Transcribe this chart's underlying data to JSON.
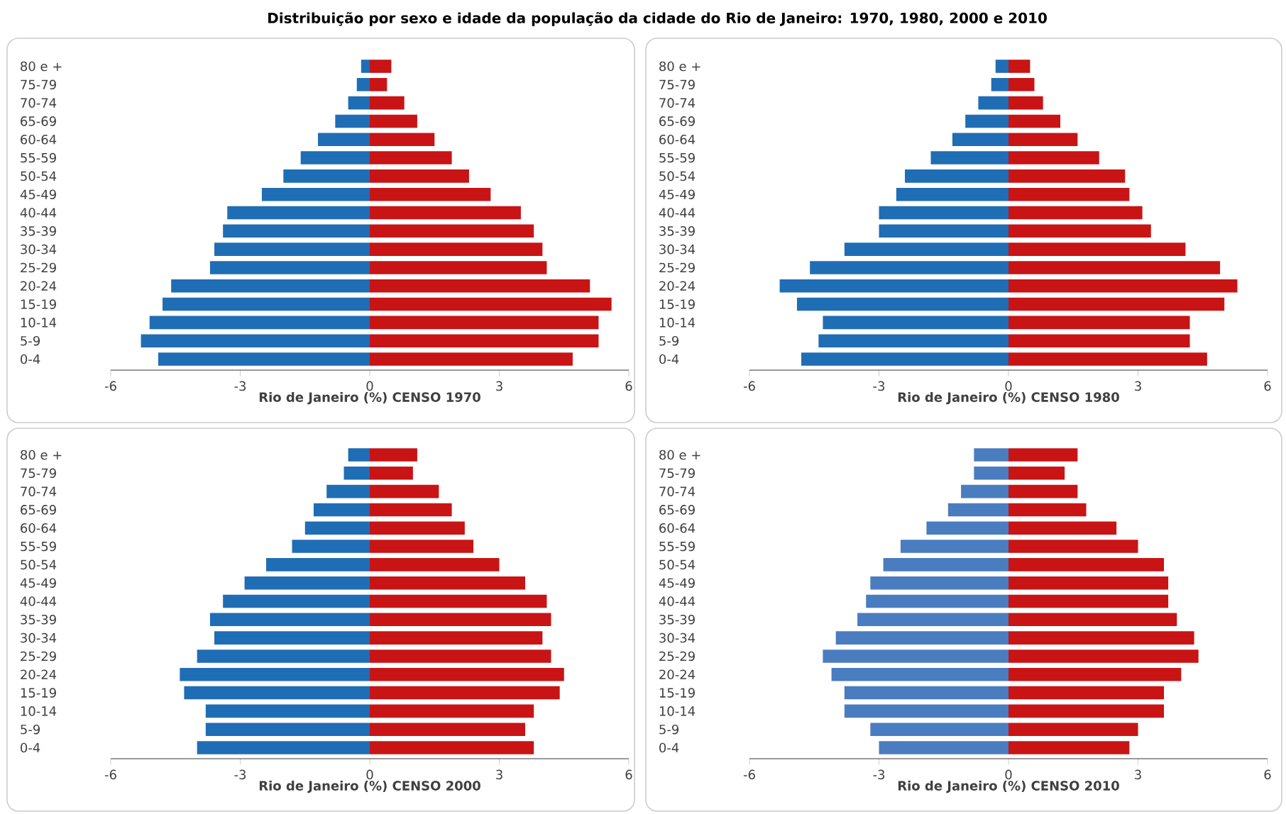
{
  "chart_data": [
    {
      "type": "bar",
      "orientation": "horizontal",
      "stacked": true,
      "title": "Distribuição por sexo e idade da população  da cidade do Rio de Janeiro: 1970, 1980, 2000 e 2010",
      "xlabel": "Rio de Janeiro (%) CENSO 1970",
      "categories": [
        "80 e +",
        "75-79",
        "70-74",
        "65-69",
        "60-64",
        "55-59",
        "50-54",
        "45-49",
        "40-44",
        "35-39",
        "30-34",
        "25-29",
        "20-24",
        "15-19",
        "10-14",
        "5-9",
        "0-4"
      ],
      "xlim": [
        -6,
        6
      ],
      "xticks": [
        -6,
        -3,
        0,
        3,
        6
      ],
      "series": [
        {
          "color": "#1f6db5",
          "values": [
            -0.2,
            -0.3,
            -0.5,
            -0.8,
            -1.2,
            -1.6,
            -2.0,
            -2.5,
            -3.3,
            -3.4,
            -3.6,
            -3.7,
            -4.6,
            -4.8,
            -5.1,
            -5.3,
            -4.9
          ]
        },
        {
          "color": "#c81414",
          "values": [
            0.5,
            0.4,
            0.8,
            1.1,
            1.5,
            1.9,
            2.3,
            2.8,
            3.5,
            3.8,
            4.0,
            4.1,
            5.1,
            5.6,
            5.3,
            5.3,
            4.7
          ]
        }
      ]
    },
    {
      "type": "bar",
      "orientation": "horizontal",
      "stacked": true,
      "xlabel": "Rio de Janeiro (%) CENSO 1980",
      "categories": [
        "80 e +",
        "75-79",
        "70-74",
        "65-69",
        "60-64",
        "55-59",
        "50-54",
        "45-49",
        "40-44",
        "35-39",
        "30-34",
        "25-29",
        "20-24",
        "15-19",
        "10-14",
        "5-9",
        "0-4"
      ],
      "xlim": [
        -6,
        6
      ],
      "xticks": [
        -6,
        -3,
        0,
        3,
        6
      ],
      "series": [
        {
          "color": "#1f6db5",
          "values": [
            -0.3,
            -0.4,
            -0.7,
            -1.0,
            -1.3,
            -1.8,
            -2.4,
            -2.6,
            -3.0,
            -3.0,
            -3.8,
            -4.6,
            -5.3,
            -4.9,
            -4.3,
            -4.4,
            -4.8
          ]
        },
        {
          "color": "#c81414",
          "values": [
            0.5,
            0.6,
            0.8,
            1.2,
            1.6,
            2.1,
            2.7,
            2.8,
            3.1,
            3.3,
            4.1,
            4.9,
            5.3,
            5.0,
            4.2,
            4.2,
            4.6
          ]
        }
      ]
    },
    {
      "type": "bar",
      "orientation": "horizontal",
      "stacked": true,
      "xlabel": "Rio de Janeiro (%) CENSO 2000",
      "categories": [
        "80 e +",
        "75-79",
        "70-74",
        "65-69",
        "60-64",
        "55-59",
        "50-54",
        "45-49",
        "40-44",
        "35-39",
        "30-34",
        "25-29",
        "20-24",
        "15-19",
        "10-14",
        "5-9",
        "0-4"
      ],
      "xlim": [
        -6,
        6
      ],
      "xticks": [
        -6,
        -3,
        0,
        3,
        6
      ],
      "series": [
        {
          "color": "#1f6db5",
          "values": [
            -0.5,
            -0.6,
            -1.0,
            -1.3,
            -1.5,
            -1.8,
            -2.4,
            -2.9,
            -3.4,
            -3.7,
            -3.6,
            -4.0,
            -4.4,
            -4.3,
            -3.8,
            -3.8,
            -4.0
          ]
        },
        {
          "color": "#c81414",
          "values": [
            1.1,
            1.0,
            1.6,
            1.9,
            2.2,
            2.4,
            3.0,
            3.6,
            4.1,
            4.2,
            4.0,
            4.2,
            4.5,
            4.4,
            3.8,
            3.6,
            3.8
          ]
        }
      ]
    },
    {
      "type": "bar",
      "orientation": "horizontal",
      "stacked": true,
      "xlabel": "Rio de Janeiro (%)  CENSO 2010",
      "categories": [
        "80 e +",
        "75-79",
        "70-74",
        "65-69",
        "60-64",
        "55-59",
        "50-54",
        "45-49",
        "40-44",
        "35-39",
        "30-34",
        "25-29",
        "20-24",
        "15-19",
        "10-14",
        "5-9",
        "0-4"
      ],
      "xlim": [
        -6,
        6
      ],
      "xticks": [
        -6,
        -3,
        0,
        3,
        6
      ],
      "series": [
        {
          "color": "#4a7cc0",
          "values": [
            -0.8,
            -0.8,
            -1.1,
            -1.4,
            -1.9,
            -2.5,
            -2.9,
            -3.2,
            -3.3,
            -3.5,
            -4.0,
            -4.3,
            -4.1,
            -3.8,
            -3.8,
            -3.2,
            -3.0
          ]
        },
        {
          "color": "#c81414",
          "values": [
            1.6,
            1.3,
            1.6,
            1.8,
            2.5,
            3.0,
            3.6,
            3.7,
            3.7,
            3.9,
            4.3,
            4.4,
            4.0,
            3.6,
            3.6,
            3.0,
            2.8
          ]
        }
      ]
    }
  ]
}
